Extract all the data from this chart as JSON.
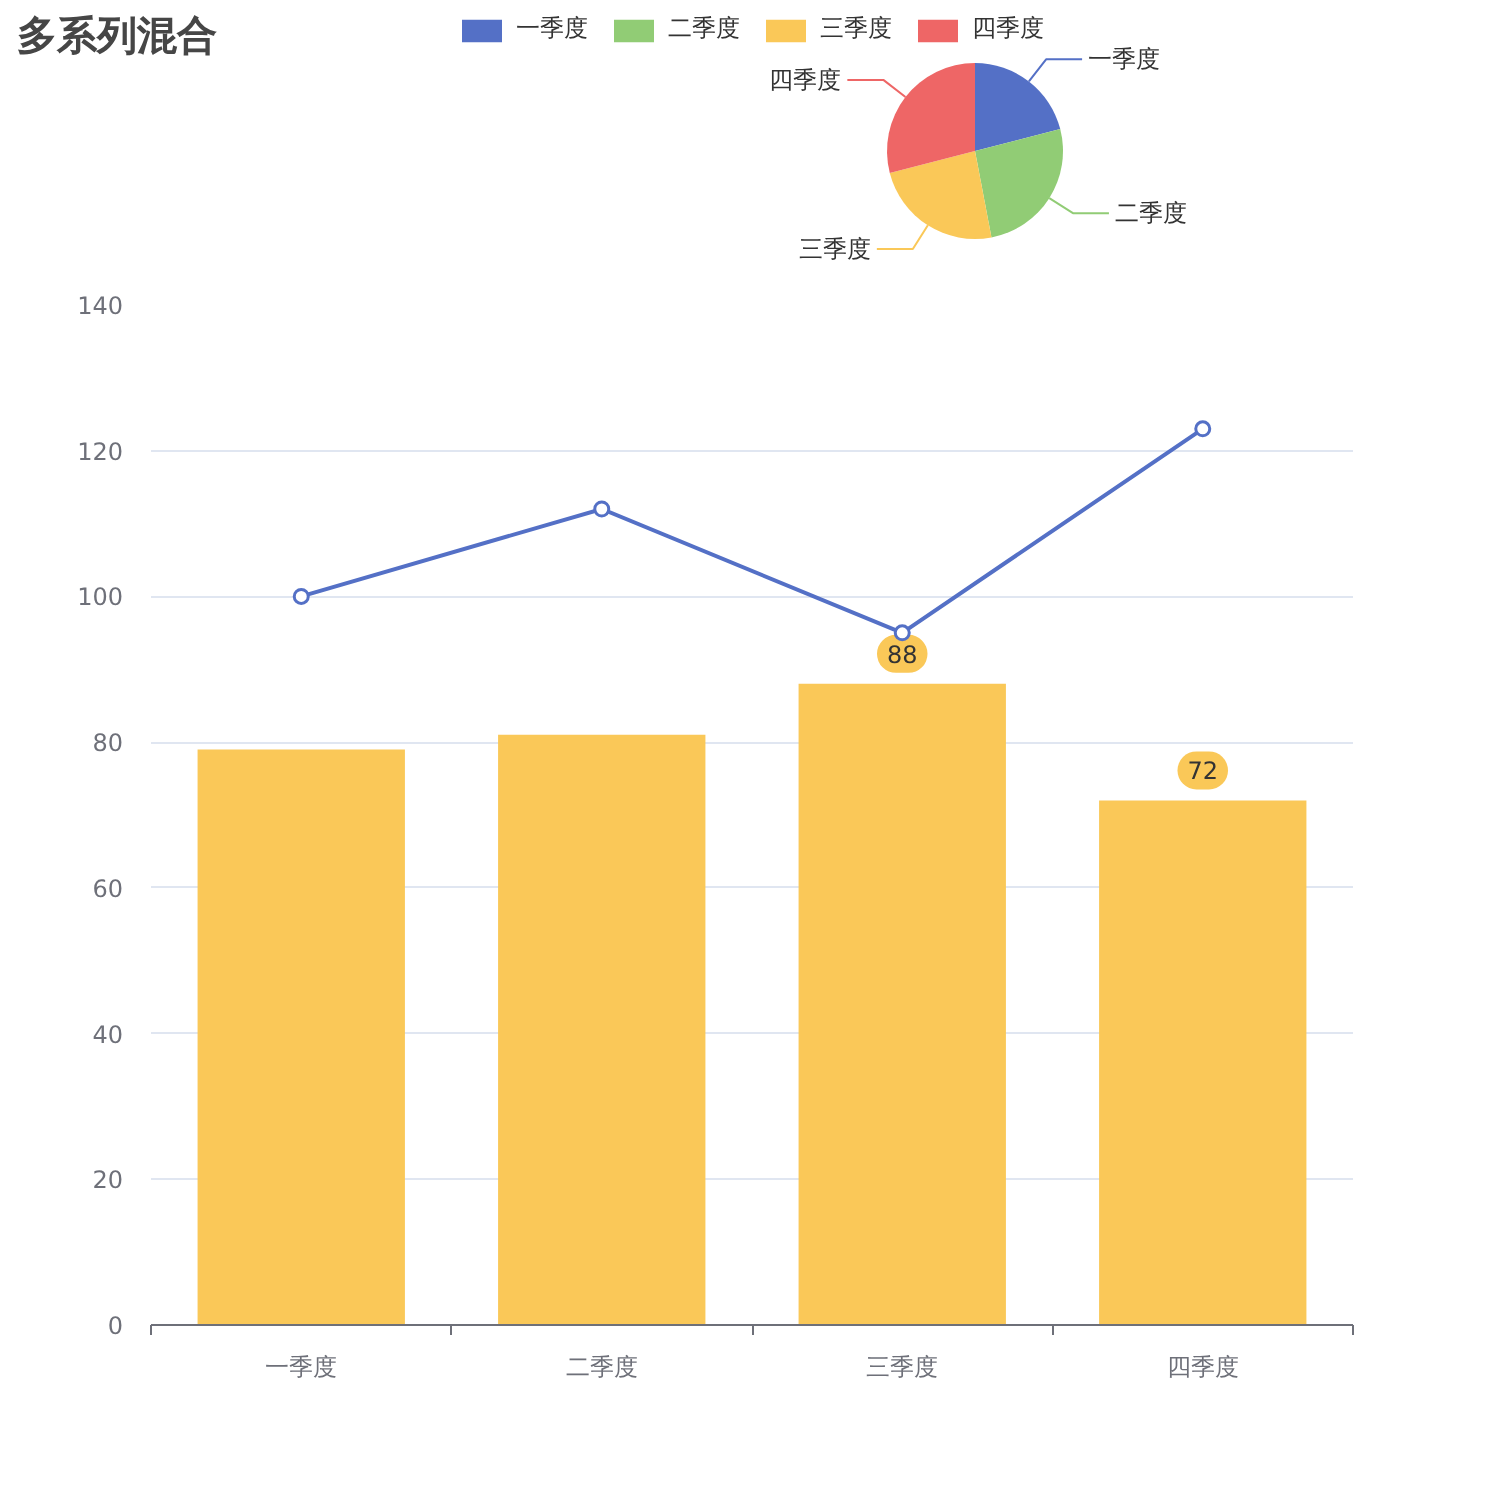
{
  "chart_data": [
    {
      "type": "bar",
      "title": "多系列混合",
      "categories": [
        "一季度",
        "二季度",
        "三季度",
        "四季度"
      ],
      "series": [
        {
          "type": "bar",
          "color": "#fac858",
          "values": [
            79,
            81,
            88,
            72
          ],
          "value_labels": [
            null,
            null,
            "88",
            "72"
          ]
        },
        {
          "type": "line",
          "color": "#5470c6",
          "values": [
            100,
            112,
            95,
            123
          ],
          "marker": "circle"
        }
      ],
      "ylim": [
        0,
        140
      ],
      "yticks": [
        0,
        20,
        40,
        60,
        80,
        100,
        120,
        140
      ],
      "grid": "y"
    },
    {
      "type": "pie",
      "categories": [
        "一季度",
        "二季度",
        "三季度",
        "四季度"
      ],
      "values": [
        21,
        26,
        24,
        29
      ],
      "colors": [
        "#5470c6",
        "#91cc75",
        "#fac858",
        "#ee6666"
      ],
      "legend": "top"
    }
  ]
}
